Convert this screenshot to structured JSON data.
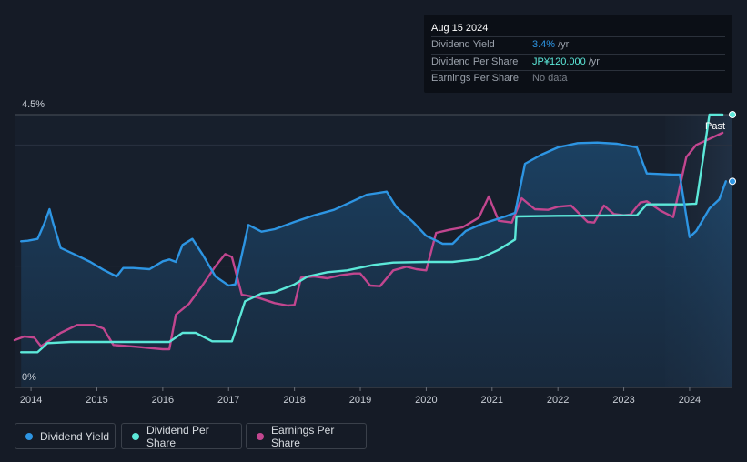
{
  "tooltip": {
    "date": "Aug 15 2024",
    "rows": [
      {
        "name": "Dividend Yield",
        "value": "3.4%",
        "unit": "/yr",
        "color": "#2d95e3"
      },
      {
        "name": "Dividend Per Share",
        "value": "JP¥120.000",
        "unit": "/yr",
        "color": "#5ce8d9"
      },
      {
        "name": "Earnings Per Share",
        "value": "No data",
        "unit": "",
        "color": "#7a808a"
      }
    ]
  },
  "past_label": "Past",
  "legend": [
    {
      "label": "Dividend Yield",
      "color": "#2d95e3"
    },
    {
      "label": "Dividend Per Share",
      "color": "#5ce8d9"
    },
    {
      "label": "Earnings Per Share",
      "color": "#c2468f"
    }
  ],
  "chart_data": {
    "type": "line",
    "title": "",
    "xlabel": "",
    "ylabel": "",
    "y_tick_labels": [
      "4.5%",
      "0%"
    ],
    "ylim": [
      0,
      4.5
    ],
    "xlim": [
      2013.75,
      2024.65
    ],
    "x_ticks": [
      2014,
      2015,
      2016,
      2017,
      2018,
      2019,
      2020,
      2021,
      2022,
      2023,
      2024
    ],
    "past_region_start": 2023.63,
    "series": [
      {
        "name": "Dividend Yield",
        "color": "#2d95e3",
        "axis": "yield_percent",
        "points": [
          [
            2013.85,
            2.41
          ],
          [
            2013.95,
            2.42
          ],
          [
            2014.1,
            2.45
          ],
          [
            2014.2,
            2.7
          ],
          [
            2014.28,
            2.94
          ],
          [
            2014.33,
            2.73
          ],
          [
            2014.45,
            2.3
          ],
          [
            2014.65,
            2.2
          ],
          [
            2014.9,
            2.07
          ],
          [
            2015.1,
            1.94
          ],
          [
            2015.3,
            1.83
          ],
          [
            2015.4,
            1.97
          ],
          [
            2015.55,
            1.97
          ],
          [
            2015.8,
            1.95
          ],
          [
            2016.0,
            2.08
          ],
          [
            2016.1,
            2.11
          ],
          [
            2016.2,
            2.07
          ],
          [
            2016.3,
            2.35
          ],
          [
            2016.45,
            2.45
          ],
          [
            2016.6,
            2.2
          ],
          [
            2016.8,
            1.83
          ],
          [
            2017.0,
            1.68
          ],
          [
            2017.1,
            1.7
          ],
          [
            2017.3,
            2.68
          ],
          [
            2017.5,
            2.57
          ],
          [
            2017.7,
            2.61
          ],
          [
            2018.0,
            2.73
          ],
          [
            2018.3,
            2.84
          ],
          [
            2018.6,
            2.93
          ],
          [
            2018.9,
            3.08
          ],
          [
            2019.1,
            3.18
          ],
          [
            2019.4,
            3.23
          ],
          [
            2019.55,
            2.97
          ],
          [
            2019.8,
            2.73
          ],
          [
            2020.0,
            2.5
          ],
          [
            2020.25,
            2.37
          ],
          [
            2020.4,
            2.37
          ],
          [
            2020.6,
            2.58
          ],
          [
            2020.85,
            2.7
          ],
          [
            2021.0,
            2.75
          ],
          [
            2021.2,
            2.82
          ],
          [
            2021.35,
            2.88
          ],
          [
            2021.5,
            3.69
          ],
          [
            2021.75,
            3.84
          ],
          [
            2022.0,
            3.96
          ],
          [
            2022.3,
            4.03
          ],
          [
            2022.6,
            4.04
          ],
          [
            2022.9,
            4.02
          ],
          [
            2023.2,
            3.96
          ],
          [
            2023.35,
            3.53
          ],
          [
            2023.55,
            3.52
          ],
          [
            2023.75,
            3.51
          ],
          [
            2023.85,
            3.51
          ],
          [
            2024.0,
            2.48
          ],
          [
            2024.1,
            2.58
          ],
          [
            2024.3,
            2.95
          ],
          [
            2024.45,
            3.1
          ],
          [
            2024.55,
            3.4
          ]
        ]
      },
      {
        "name": "Dividend Per Share",
        "color": "#5ce8d9",
        "axis": "yield_percent",
        "points": [
          [
            2013.85,
            0.58
          ],
          [
            2014.1,
            0.58
          ],
          [
            2014.25,
            0.73
          ],
          [
            2014.6,
            0.75
          ],
          [
            2015.5,
            0.75
          ],
          [
            2016.1,
            0.75
          ],
          [
            2016.3,
            0.9
          ],
          [
            2016.5,
            0.9
          ],
          [
            2016.75,
            0.76
          ],
          [
            2017.05,
            0.76
          ],
          [
            2017.25,
            1.42
          ],
          [
            2017.5,
            1.55
          ],
          [
            2017.7,
            1.57
          ],
          [
            2018.0,
            1.7
          ],
          [
            2018.2,
            1.83
          ],
          [
            2018.5,
            1.9
          ],
          [
            2018.8,
            1.93
          ],
          [
            2019.2,
            2.02
          ],
          [
            2019.5,
            2.06
          ],
          [
            2020.0,
            2.07
          ],
          [
            2020.4,
            2.07
          ],
          [
            2020.8,
            2.12
          ],
          [
            2021.1,
            2.27
          ],
          [
            2021.35,
            2.44
          ],
          [
            2021.37,
            2.82
          ],
          [
            2022.0,
            2.83
          ],
          [
            2023.2,
            2.84
          ],
          [
            2023.35,
            3.02
          ],
          [
            2023.9,
            3.02
          ],
          [
            2024.1,
            3.03
          ],
          [
            2024.2,
            3.75
          ],
          [
            2024.3,
            4.5
          ],
          [
            2024.5,
            4.5
          ]
        ]
      },
      {
        "name": "Earnings Per Share",
        "color": "#c2468f",
        "axis": "yield_percent",
        "points": [
          [
            2013.75,
            0.78
          ],
          [
            2013.9,
            0.84
          ],
          [
            2014.05,
            0.82
          ],
          [
            2014.15,
            0.68
          ],
          [
            2014.45,
            0.9
          ],
          [
            2014.7,
            1.03
          ],
          [
            2014.95,
            1.03
          ],
          [
            2015.1,
            0.97
          ],
          [
            2015.25,
            0.7
          ],
          [
            2015.6,
            0.67
          ],
          [
            2015.8,
            0.65
          ],
          [
            2016.0,
            0.63
          ],
          [
            2016.1,
            0.63
          ],
          [
            2016.2,
            1.2
          ],
          [
            2016.4,
            1.38
          ],
          [
            2016.6,
            1.68
          ],
          [
            2016.8,
            2.0
          ],
          [
            2016.95,
            2.2
          ],
          [
            2017.05,
            2.15
          ],
          [
            2017.2,
            1.53
          ],
          [
            2017.45,
            1.48
          ],
          [
            2017.7,
            1.39
          ],
          [
            2017.9,
            1.35
          ],
          [
            2018.0,
            1.36
          ],
          [
            2018.1,
            1.81
          ],
          [
            2018.3,
            1.83
          ],
          [
            2018.5,
            1.8
          ],
          [
            2018.7,
            1.85
          ],
          [
            2018.9,
            1.88
          ],
          [
            2019.0,
            1.88
          ],
          [
            2019.15,
            1.68
          ],
          [
            2019.3,
            1.67
          ],
          [
            2019.5,
            1.93
          ],
          [
            2019.7,
            1.99
          ],
          [
            2019.85,
            1.95
          ],
          [
            2020.0,
            1.93
          ],
          [
            2020.15,
            2.55
          ],
          [
            2020.35,
            2.6
          ],
          [
            2020.55,
            2.64
          ],
          [
            2020.8,
            2.8
          ],
          [
            2020.95,
            3.15
          ],
          [
            2021.1,
            2.75
          ],
          [
            2021.3,
            2.72
          ],
          [
            2021.45,
            3.12
          ],
          [
            2021.65,
            2.94
          ],
          [
            2021.85,
            2.93
          ],
          [
            2022.0,
            2.98
          ],
          [
            2022.2,
            3.0
          ],
          [
            2022.45,
            2.73
          ],
          [
            2022.55,
            2.72
          ],
          [
            2022.7,
            3.0
          ],
          [
            2022.85,
            2.86
          ],
          [
            2023.0,
            2.84
          ],
          [
            2023.1,
            2.85
          ],
          [
            2023.25,
            3.05
          ],
          [
            2023.35,
            3.07
          ],
          [
            2023.55,
            2.92
          ],
          [
            2023.75,
            2.81
          ],
          [
            2023.95,
            3.8
          ],
          [
            2024.1,
            4.0
          ],
          [
            2024.3,
            4.1
          ],
          [
            2024.5,
            4.2
          ]
        ]
      }
    ],
    "end_markers": [
      "Dividend Yield",
      "Dividend Per Share"
    ]
  }
}
